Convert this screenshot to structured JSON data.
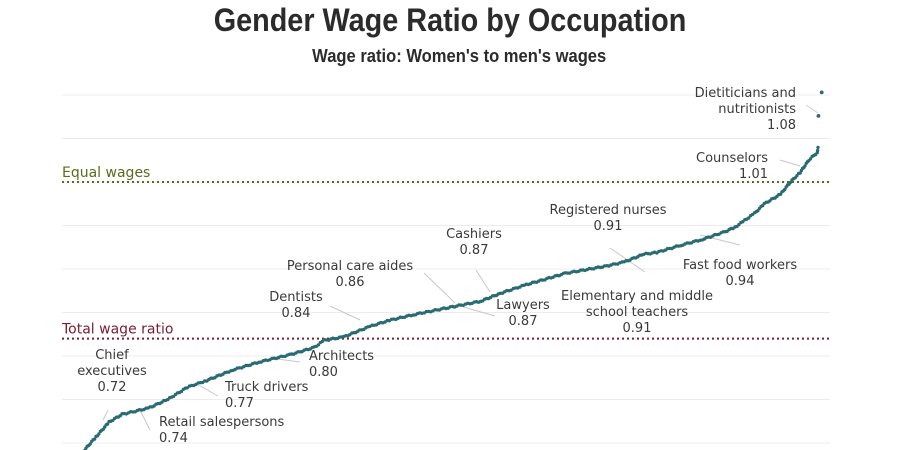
{
  "chart_data": {
    "type": "scatter",
    "title": "Gender Wage Ratio by Occupation",
    "subtitle": "Wage ratio: Women's to men's wages",
    "xlabel": "",
    "ylabel": "",
    "ylim": [
      0.69,
      1.11
    ],
    "y_grid_step": 0.05,
    "grid": true,
    "colors": {
      "points": "#2a6b73",
      "equal_line": "#5a6b1e",
      "total_line": "#7a1c33",
      "leader": "#c8c8c8",
      "text": "#3a3a3a"
    },
    "reference_lines": [
      {
        "name": "equal-wages",
        "label": "Equal wages",
        "value": 1.0
      },
      {
        "name": "total-wage-ratio",
        "label": "Total wage ratio",
        "value": 0.82
      }
    ],
    "curve_ranked": [
      [
        0.0,
        0.69
      ],
      [
        0.02,
        0.707
      ],
      [
        0.04,
        0.724
      ],
      [
        0.06,
        0.733
      ],
      [
        0.1,
        0.74
      ],
      [
        0.13,
        0.75
      ],
      [
        0.16,
        0.764
      ],
      [
        0.19,
        0.772
      ],
      [
        0.23,
        0.784
      ],
      [
        0.27,
        0.793
      ],
      [
        0.32,
        0.802
      ],
      [
        0.355,
        0.81
      ],
      [
        0.37,
        0.818
      ],
      [
        0.4,
        0.822
      ],
      [
        0.44,
        0.834
      ],
      [
        0.47,
        0.841
      ],
      [
        0.51,
        0.848
      ],
      [
        0.57,
        0.857
      ],
      [
        0.61,
        0.863
      ],
      [
        0.64,
        0.872
      ],
      [
        0.68,
        0.882
      ],
      [
        0.74,
        0.895
      ],
      [
        0.8,
        0.903
      ],
      [
        0.83,
        0.908
      ],
      [
        0.86,
        0.917
      ],
      [
        0.88,
        0.919
      ],
      [
        0.92,
        0.928
      ],
      [
        0.95,
        0.934
      ],
      [
        0.985,
        0.943
      ],
      [
        1.0,
        0.948
      ],
      [
        1.015,
        0.956
      ],
      [
        1.03,
        0.964
      ],
      [
        1.045,
        0.975
      ],
      [
        1.07,
        0.986
      ],
      [
        1.085,
        1.0
      ],
      [
        1.1,
        1.011
      ],
      [
        1.113,
        1.025
      ],
      [
        1.126,
        1.034
      ],
      [
        1.128,
        1.042
      ]
    ],
    "outliers": [
      [
        1.128,
        1.076
      ],
      [
        1.133,
        1.103
      ]
    ],
    "annotations": [
      {
        "name": "chief-executives",
        "lines": [
          "Chief",
          "executives",
          "0.72"
        ]
      },
      {
        "name": "retail-salespersons",
        "lines": [
          "Retail salespersons",
          "0.74"
        ]
      },
      {
        "name": "truck-drivers",
        "lines": [
          "Truck drivers",
          "0.77"
        ]
      },
      {
        "name": "architects",
        "lines": [
          "Architects",
          "0.80"
        ]
      },
      {
        "name": "dentists",
        "lines": [
          "Dentists",
          "0.84"
        ]
      },
      {
        "name": "personal-care-aides",
        "lines": [
          "Personal care aides",
          "0.86"
        ]
      },
      {
        "name": "cashiers",
        "lines": [
          "Cashiers",
          "0.87"
        ]
      },
      {
        "name": "lawyers",
        "lines": [
          "Lawyers",
          "0.87"
        ]
      },
      {
        "name": "elementary-middle-teachers",
        "lines": [
          "Elementary and middle",
          "school teachers",
          "0.91"
        ]
      },
      {
        "name": "registered-nurses",
        "lines": [
          "Registered nurses",
          "0.91"
        ]
      },
      {
        "name": "fast-food-workers",
        "lines": [
          "Fast food workers",
          "0.94"
        ]
      },
      {
        "name": "counselors",
        "lines": [
          "Counselors",
          "1.01"
        ]
      },
      {
        "name": "dietitians-nutritionists",
        "lines": [
          "Dietiticians and",
          "nutritionists",
          "1.08"
        ]
      }
    ]
  }
}
